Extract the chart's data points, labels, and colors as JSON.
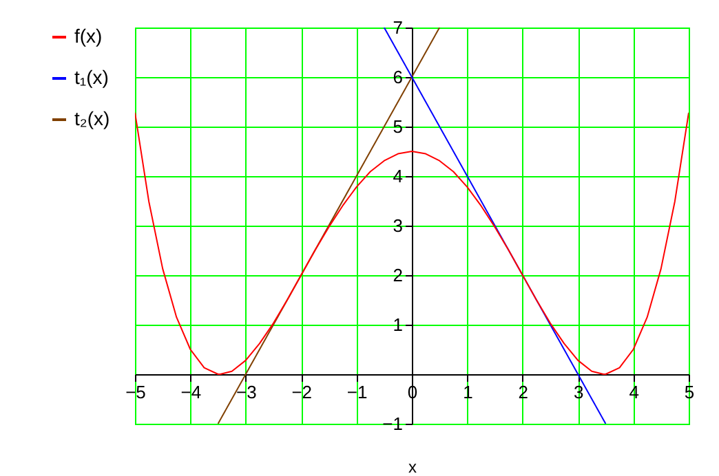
{
  "chart_data": {
    "type": "line",
    "xlabel": "x",
    "xlim": [
      -5,
      5
    ],
    "xticks": [
      -5,
      -4,
      -3,
      -2,
      -1,
      0,
      1,
      2,
      3,
      4,
      5
    ],
    "ylim": [
      -1,
      7
    ],
    "yticks": [
      -1,
      {
        "value": 0,
        "label": null
      },
      1,
      2,
      3,
      4,
      5,
      6,
      7
    ],
    "grid": true,
    "legend": "left",
    "marker": "none",
    "line_style": "solid",
    "series": [
      {
        "name": "f(x)",
        "color": "#ff0000",
        "x": [
          -5,
          -4.75,
          -4.5,
          -4.25,
          -4,
          -3.75,
          -3.5,
          -3.46,
          -3.25,
          -3,
          -2.75,
          -2.5,
          -2.25,
          -2,
          -1.75,
          -1.5,
          -1.25,
          -1,
          -0.75,
          -0.5,
          -0.25,
          0,
          0.25,
          0.5,
          0.75,
          1,
          1.25,
          1.5,
          1.75,
          2,
          2.25,
          2.5,
          2.75,
          3,
          3.25,
          3.46,
          3.5,
          3.75,
          4,
          4.25,
          4.5,
          4.75,
          5
        ],
        "values": [
          5.28,
          3.49,
          2.13,
          1.15,
          0.5,
          0.13,
          0,
          0,
          0.06,
          0.28,
          0.62,
          1.03,
          1.5,
          2,
          2.5,
          2.97,
          3.4,
          3.78,
          4.09,
          4.31,
          4.45,
          4.5,
          4.45,
          4.31,
          4.09,
          3.78,
          3.4,
          2.97,
          2.5,
          2,
          1.5,
          1.03,
          0.62,
          0.28,
          0.06,
          0,
          0,
          0.13,
          0.5,
          1.15,
          2.13,
          3.49,
          5.28
        ]
      },
      {
        "name": "t₁(x)",
        "color": "#0000ff",
        "x": [
          -0.5,
          3.5
        ],
        "values": [
          7,
          -1
        ]
      },
      {
        "name": "t₂(x)",
        "color": "#804000",
        "x": [
          -3.5,
          0.5
        ],
        "values": [
          -1,
          7
        ]
      }
    ]
  }
}
